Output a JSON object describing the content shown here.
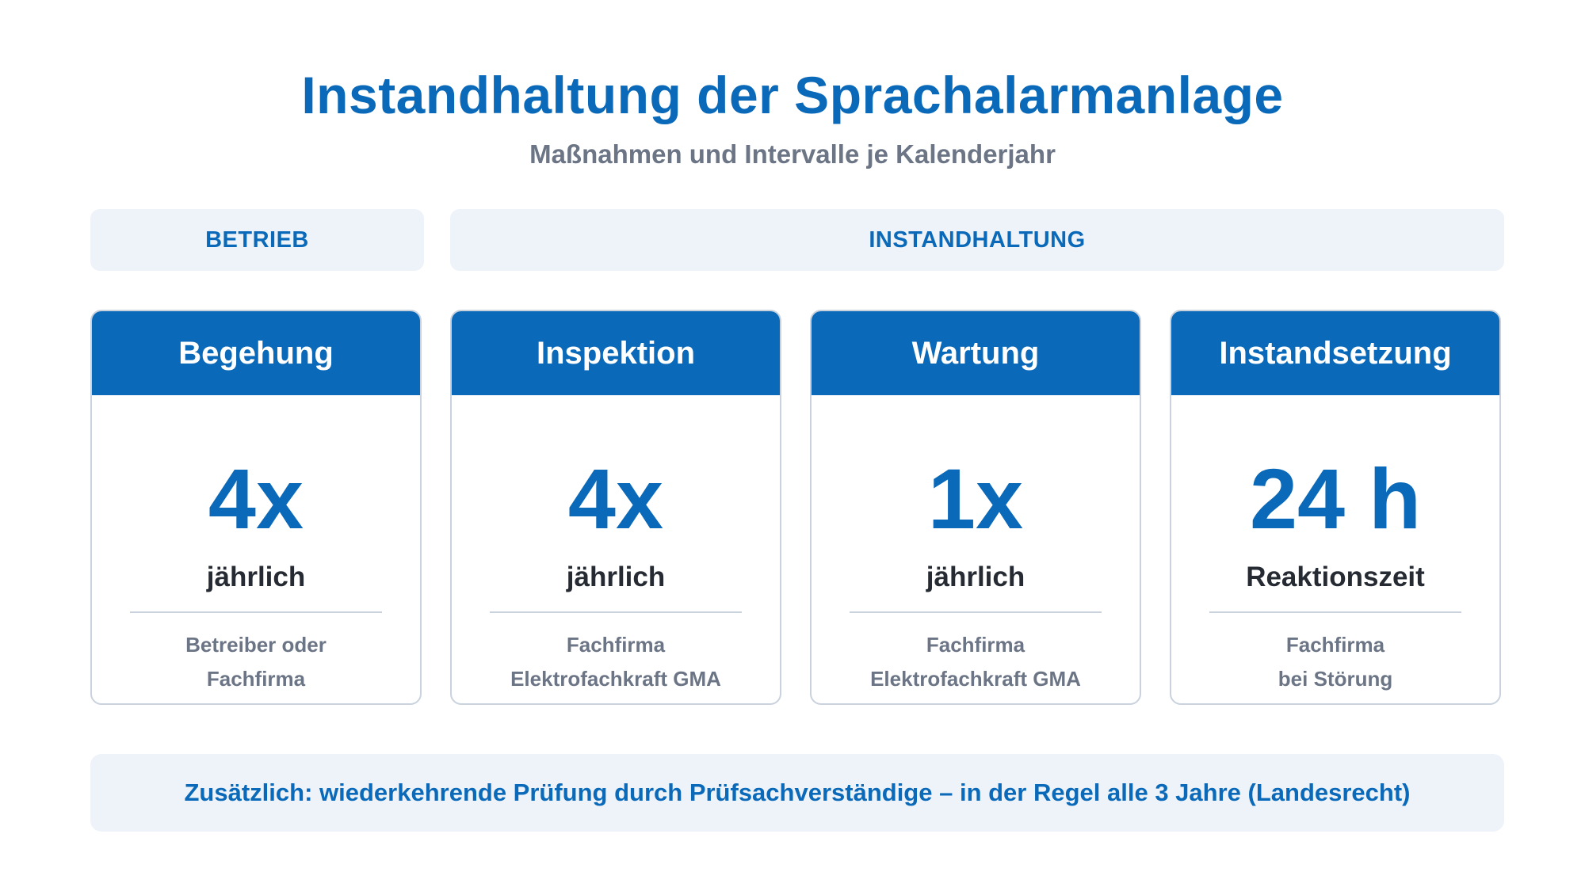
{
  "header": {
    "title": "Instandhaltung der Sprachalarmanlage",
    "subtitle": "Maßnahmen und Intervalle je Kalenderjahr"
  },
  "sections": {
    "betrieb": "BETRIEB",
    "instandhaltung": "INSTANDHALTUNG"
  },
  "cards": [
    {
      "title": "Begehung",
      "value": "4x",
      "unit": "jährlich",
      "note_line1": "Betreiber oder",
      "note_line2": "Fachfirma"
    },
    {
      "title": "Inspektion",
      "value": "4x",
      "unit": "jährlich",
      "note_line1": "Fachfirma",
      "note_line2": "Elektrofachkraft GMA"
    },
    {
      "title": "Wartung",
      "value": "1x",
      "unit": "jährlich",
      "note_line1": "Fachfirma",
      "note_line2": "Elektrofachkraft GMA"
    },
    {
      "title": "Instandsetzung",
      "value": "24 h",
      "unit": "Reaktionszeit",
      "note_line1": "Fachfirma",
      "note_line2": "bei Störung"
    }
  ],
  "footer": {
    "text": "Zusätzlich: wiederkehrende Prüfung durch Prüfsachverständige – in der Regel alle 3 Jahre (Landesrecht)"
  },
  "colors": {
    "accent": "#0a69b8",
    "panel": "#eef3f9",
    "muted": "#6b7585",
    "border": "#c9d2dd"
  }
}
